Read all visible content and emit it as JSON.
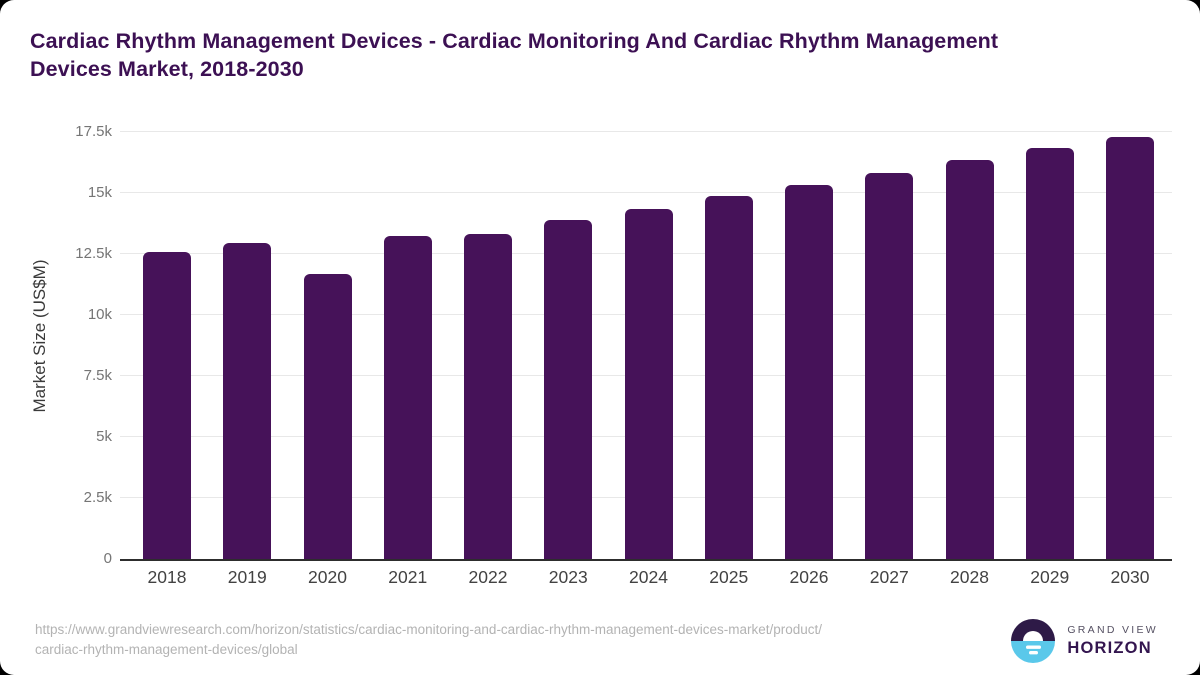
{
  "header": {
    "title": "Cardiac Rhythm Management Devices - Cardiac Monitoring And Cardiac Rhythm Management Devices Market, 2018-2030",
    "title_lines": [
      "Cardiac Rhythm Management Devices - Cardiac Monitoring And Cardiac Rhythm Management",
      "Devices Market, 2018-2030"
    ]
  },
  "chart_data": {
    "type": "bar",
    "title": "Cardiac Rhythm Management Devices - Cardiac Monitoring And Cardiac Rhythm Management Devices Market, 2018-2030",
    "categories": [
      "2018",
      "2019",
      "2020",
      "2021",
      "2022",
      "2023",
      "2024",
      "2025",
      "2026",
      "2027",
      "2028",
      "2029",
      "2030"
    ],
    "values": [
      12600,
      12950,
      11680,
      13240,
      13340,
      13890,
      14340,
      14880,
      15330,
      15830,
      16350,
      16840,
      17280
    ],
    "xlabel": "",
    "ylabel": "Market Size (US$M)",
    "ylim": [
      0,
      17500
    ],
    "yticks": [
      0,
      2500,
      5000,
      7500,
      10000,
      12500,
      15000,
      17500
    ],
    "ytick_labels": [
      "0",
      "2.5k",
      "5k",
      "7.5k",
      "10k",
      "12.5k",
      "15k",
      "17.5k"
    ],
    "grid": true,
    "legend_position": "none",
    "bar_color": "#461259"
  },
  "footer": {
    "source_line1": "https://www.grandviewresearch.com/horizon/statistics/cardiac-monitoring-and-cardiac-rhythm-management-devices-market/product/",
    "source_line2": "cardiac-rhythm-management-devices/global",
    "logo": {
      "top_text": "GRAND VIEW",
      "bottom_text": "HORIZON"
    }
  },
  "colors": {
    "bar": "#461259",
    "title_text": "#3c1053",
    "axis_line": "#2d2d2d",
    "gridline": "#e8e8e8",
    "ytick_text": "#757575",
    "xtick_text": "#424242",
    "url_text": "#b3b3b3",
    "logo_dark_purple": "#2e1a47",
    "logo_light_blue": "#5ac8ea"
  }
}
